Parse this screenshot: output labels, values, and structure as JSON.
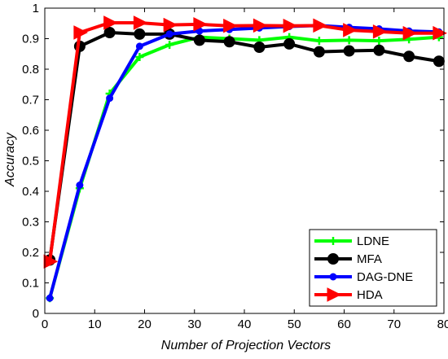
{
  "chart_data": {
    "type": "line",
    "title": "",
    "xlabel": "Number of Projection Vectors",
    "ylabel": "Accuracy",
    "xlim": [
      0,
      80
    ],
    "ylim": [
      0,
      1
    ],
    "xticks": [
      0,
      10,
      20,
      30,
      40,
      50,
      60,
      70,
      80
    ],
    "yticks": [
      0,
      0.1,
      0.2,
      0.3,
      0.4,
      0.5,
      0.6,
      0.7,
      0.8,
      0.9,
      1
    ],
    "xtick_labels": [
      "0",
      "10",
      "20",
      "30",
      "40",
      "50",
      "60",
      "70",
      "80"
    ],
    "ytick_labels": [
      "0",
      "0.1",
      "0.2",
      "0.3",
      "0.4",
      "0.5",
      "0.6",
      "0.7",
      "0.8",
      "0.9",
      "1"
    ],
    "grid": false,
    "legend_position": "bottom-right",
    "x": [
      1,
      7,
      13,
      19,
      25,
      31,
      37,
      43,
      49,
      55,
      61,
      67,
      73,
      79
    ],
    "series": [
      {
        "name": "LDNE",
        "color": "#00ff00",
        "marker": "plus",
        "values": [
          0.05,
          0.41,
          0.72,
          0.84,
          0.88,
          0.905,
          0.9,
          0.895,
          0.905,
          0.893,
          0.895,
          0.893,
          0.898,
          0.905
        ]
      },
      {
        "name": "MFA",
        "color": "#000000",
        "marker": "circle",
        "values": [
          0.175,
          0.875,
          0.92,
          0.915,
          0.915,
          0.895,
          0.89,
          0.872,
          0.883,
          0.857,
          0.86,
          0.862,
          0.842,
          0.826
        ]
      },
      {
        "name": "DAG-DNE",
        "color": "#0000ff",
        "marker": "dot",
        "values": [
          0.05,
          0.42,
          0.705,
          0.875,
          0.915,
          0.925,
          0.93,
          0.935,
          0.94,
          0.943,
          0.937,
          0.932,
          0.925,
          0.922
        ]
      },
      {
        "name": "HDA",
        "color": "#ff0000",
        "marker": "triangle-right",
        "values": [
          0.17,
          0.92,
          0.952,
          0.952,
          0.945,
          0.947,
          0.942,
          0.943,
          0.942,
          0.943,
          0.928,
          0.923,
          0.918,
          0.918
        ]
      }
    ]
  }
}
